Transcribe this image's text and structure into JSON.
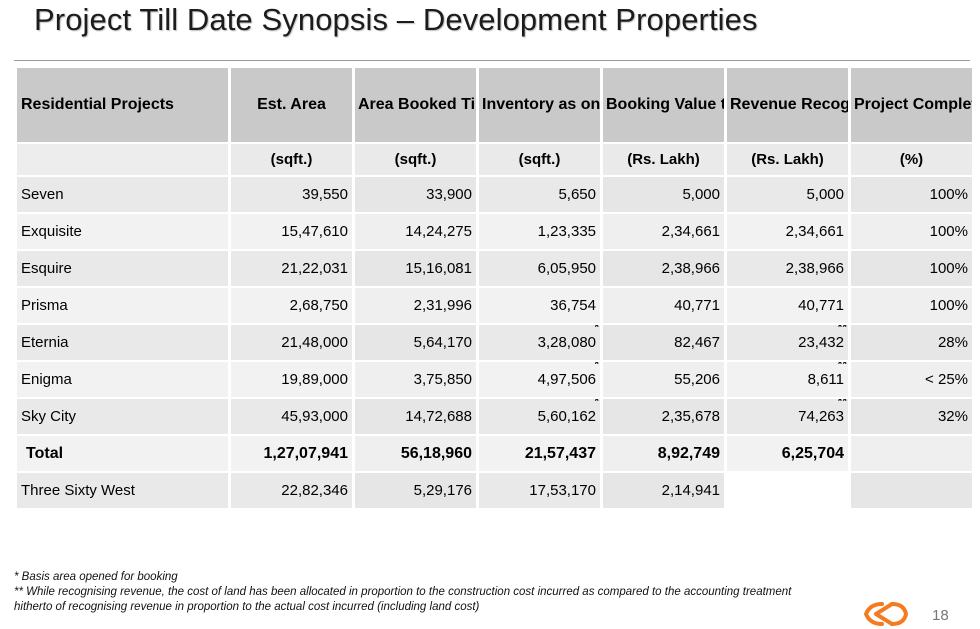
{
  "title": "Project Till Date Synopsis – Development Properties",
  "table": {
    "headers": [
      "Residential Projects",
      "Est. Area",
      "Area Booked Till Date",
      "Inventory as on Date",
      "Booking Value till Date",
      "Revenue Recognised till Date",
      "Project Completion"
    ],
    "units": [
      "",
      "(sqft.)",
      "(sqft.)",
      "(sqft.)",
      "(Rs. Lakh)",
      "(Rs. Lakh)",
      "(%)"
    ],
    "rows": [
      {
        "name": "Seven",
        "est_area": "39,550",
        "area_booked": "33,900",
        "inventory": "5,650",
        "inventory_mark": "",
        "booking_value": "5,000",
        "revenue": "5,000",
        "revenue_mark": "",
        "completion": "100%"
      },
      {
        "name": "Exquisite",
        "est_area": "15,47,610",
        "area_booked": "14,24,275",
        "inventory": "1,23,335",
        "inventory_mark": "",
        "booking_value": "2,34,661",
        "revenue": "2,34,661",
        "revenue_mark": "",
        "completion": "100%"
      },
      {
        "name": "Esquire",
        "est_area": "21,22,031",
        "area_booked": "15,16,081",
        "inventory": "6,05,950",
        "inventory_mark": "",
        "booking_value": "2,38,966",
        "revenue": "2,38,966",
        "revenue_mark": "",
        "completion": "100%"
      },
      {
        "name": "Prisma",
        "est_area": "2,68,750",
        "area_booked": "2,31,996",
        "inventory": "36,754",
        "inventory_mark": "",
        "booking_value": "40,771",
        "revenue": "40,771",
        "revenue_mark": "",
        "completion": "100%"
      },
      {
        "name": "Eternia",
        "est_area": "21,48,000",
        "area_booked": "5,64,170",
        "inventory": "3,28,080",
        "inventory_mark": "*",
        "booking_value": "82,467",
        "revenue": "23,432",
        "revenue_mark": "**",
        "completion": "28%"
      },
      {
        "name": "Enigma",
        "est_area": "19,89,000",
        "area_booked": "3,75,850",
        "inventory": "4,97,506",
        "inventory_mark": "*",
        "booking_value": "55,206",
        "revenue": "8,611",
        "revenue_mark": "**",
        "completion": "< 25%"
      },
      {
        "name": "Sky City",
        "est_area": "45,93,000",
        "area_booked": "14,72,688",
        "inventory": "5,60,162",
        "inventory_mark": "*",
        "booking_value": "2,35,678",
        "revenue": "74,263",
        "revenue_mark": "**",
        "completion": "32%"
      }
    ],
    "total": {
      "name": "Total",
      "est_area": "1,27,07,941",
      "area_booked": "56,18,960",
      "inventory": "21,57,437",
      "booking_value": "8,92,749",
      "revenue": "6,25,704",
      "completion": ""
    },
    "extra_row": {
      "name": "Three Sixty West",
      "est_area": "22,82,346",
      "area_booked": "5,29,176",
      "inventory": "17,53,170",
      "booking_value": "2,14,941",
      "revenue": "",
      "completion": ""
    }
  },
  "footnotes": [
    "* Basis area opened for booking",
    "** While recognising revenue, the cost of land has been allocated in proportion to the construction cost incurred as compared to the accounting treatment hitherto of recognising revenue in proportion to the actual cost incurred (including land cost)"
  ],
  "page_number": "18",
  "logo": {
    "icon": "company-logo-icon",
    "color": "#f47b20"
  }
}
